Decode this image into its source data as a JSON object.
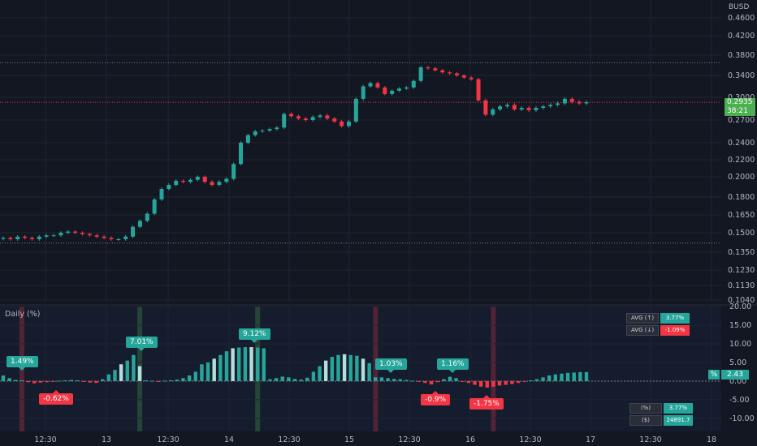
{
  "currency_label": "BUSD",
  "last_price": "0.2935",
  "countdown": "38:21",
  "indicator_title": "Daily (%)",
  "indicator_value_pct_label": "%",
  "indicator_value": "2.43",
  "avg_table": [
    {
      "label": "AVG (↑)",
      "value": "3.77%",
      "color": "#26a69a"
    },
    {
      "label": "AVG (↓)",
      "value": "-1.09%",
      "color": "#f23645"
    }
  ],
  "summary_table": [
    {
      "label": "(%)",
      "value": "3.77%",
      "color": "#26a69a"
    },
    {
      "label": "($)",
      "value": "24891.7",
      "color": "#26a69a"
    }
  ],
  "bubbles": [
    {
      "text": "1.49%",
      "dir": "up"
    },
    {
      "text": "-0.62%",
      "dir": "dn"
    },
    {
      "text": "7.01%",
      "dir": "up"
    },
    {
      "text": "9.12%",
      "dir": "up"
    },
    {
      "text": "1.03%",
      "dir": "up"
    },
    {
      "text": "-0.9%",
      "dir": "dn"
    },
    {
      "text": "1.16%",
      "dir": "up"
    },
    {
      "text": "-1.75%",
      "dir": "dn"
    }
  ],
  "chart_data": [
    {
      "type": "candlestick",
      "y_axis_ticks": [
        "0.4600",
        "0.4200",
        "0.3800",
        "0.3400",
        "0.3000",
        "0.2700",
        "0.2400",
        "0.2200",
        "0.2000",
        "0.1800",
        "0.1650",
        "0.1500",
        "0.1350",
        "0.1230",
        "0.1130",
        "0.1040"
      ],
      "x_axis_ticks": [
        "12:30",
        "13",
        "12:30",
        "14",
        "12:30",
        "15",
        "12:30",
        "16",
        "12:30",
        "17",
        "12:30",
        "18"
      ],
      "ylim": [
        0.104,
        0.46
      ],
      "reference_lines": [
        0.365,
        0.2935,
        0.142
      ],
      "close_series": [
        0.146,
        0.145,
        0.147,
        0.146,
        0.145,
        0.147,
        0.148,
        0.148,
        0.15,
        0.151,
        0.15,
        0.149,
        0.148,
        0.147,
        0.146,
        0.145,
        0.145,
        0.147,
        0.155,
        0.16,
        0.166,
        0.178,
        0.188,
        0.192,
        0.196,
        0.195,
        0.197,
        0.2,
        0.195,
        0.192,
        0.195,
        0.198,
        0.215,
        0.24,
        0.25,
        0.255,
        0.256,
        0.258,
        0.26,
        0.278,
        0.275,
        0.272,
        0.27,
        0.274,
        0.276,
        0.272,
        0.268,
        0.262,
        0.268,
        0.298,
        0.32,
        0.326,
        0.318,
        0.306,
        0.312,
        0.316,
        0.318,
        0.33,
        0.356,
        0.354,
        0.35,
        0.346,
        0.344,
        0.34,
        0.336,
        0.333,
        0.296,
        0.277,
        0.284,
        0.288,
        0.29,
        0.284,
        0.286,
        0.283,
        0.286,
        0.288,
        0.29,
        0.292,
        0.298,
        0.294,
        0.292,
        0.2935
      ]
    },
    {
      "type": "bar",
      "title": "Daily (%)",
      "y_axis_ticks": [
        "20.00",
        "15.00",
        "10.00",
        "5.00",
        "0.00",
        "-5.00",
        "-10.00"
      ],
      "ylim": [
        -13.5,
        20
      ],
      "values": [
        1.49,
        0.8,
        0.3,
        0.2,
        -0.3,
        -0.62,
        -0.4,
        -0.3,
        -0.2,
        0.1,
        0.2,
        0.3,
        0.2,
        -0.2,
        -0.4,
        -0.5,
        0.5,
        1.8,
        3.0,
        4.5,
        5.5,
        7.01,
        4.0,
        0.2,
        0.1,
        -0.2,
        0.1,
        0.2,
        0.4,
        0.8,
        1.5,
        2.5,
        4.5,
        5.0,
        6.0,
        7.0,
        8.0,
        8.8,
        9.0,
        9.1,
        9.12,
        9.0,
        8.8,
        0.5,
        0.8,
        1.2,
        1.0,
        0.6,
        0.4,
        0.9,
        2.5,
        4.0,
        5.5,
        6.5,
        7.0,
        7.2,
        7.0,
        6.8,
        6.0,
        4.8,
        1.03,
        1.0,
        0.8,
        0.6,
        0.5,
        0.3,
        0.1,
        -0.2,
        -0.5,
        -0.9,
        -0.3,
        0.5,
        1.16,
        0.8,
        -0.2,
        -0.5,
        -1.0,
        -1.5,
        -1.75,
        -1.5,
        -1.2,
        -1.0,
        -0.8,
        -0.5,
        -0.2,
        0.2,
        0.5,
        1.0,
        1.5,
        1.8,
        2.0,
        2.2,
        2.3,
        2.4,
        2.43
      ],
      "highlight_columns": [
        {
          "x_index": 3,
          "color": "red"
        },
        {
          "x_index": 22,
          "color": "green"
        },
        {
          "x_index": 41,
          "color": "green"
        },
        {
          "x_index": 60,
          "color": "red"
        },
        {
          "x_index": 79,
          "color": "red"
        }
      ]
    }
  ]
}
